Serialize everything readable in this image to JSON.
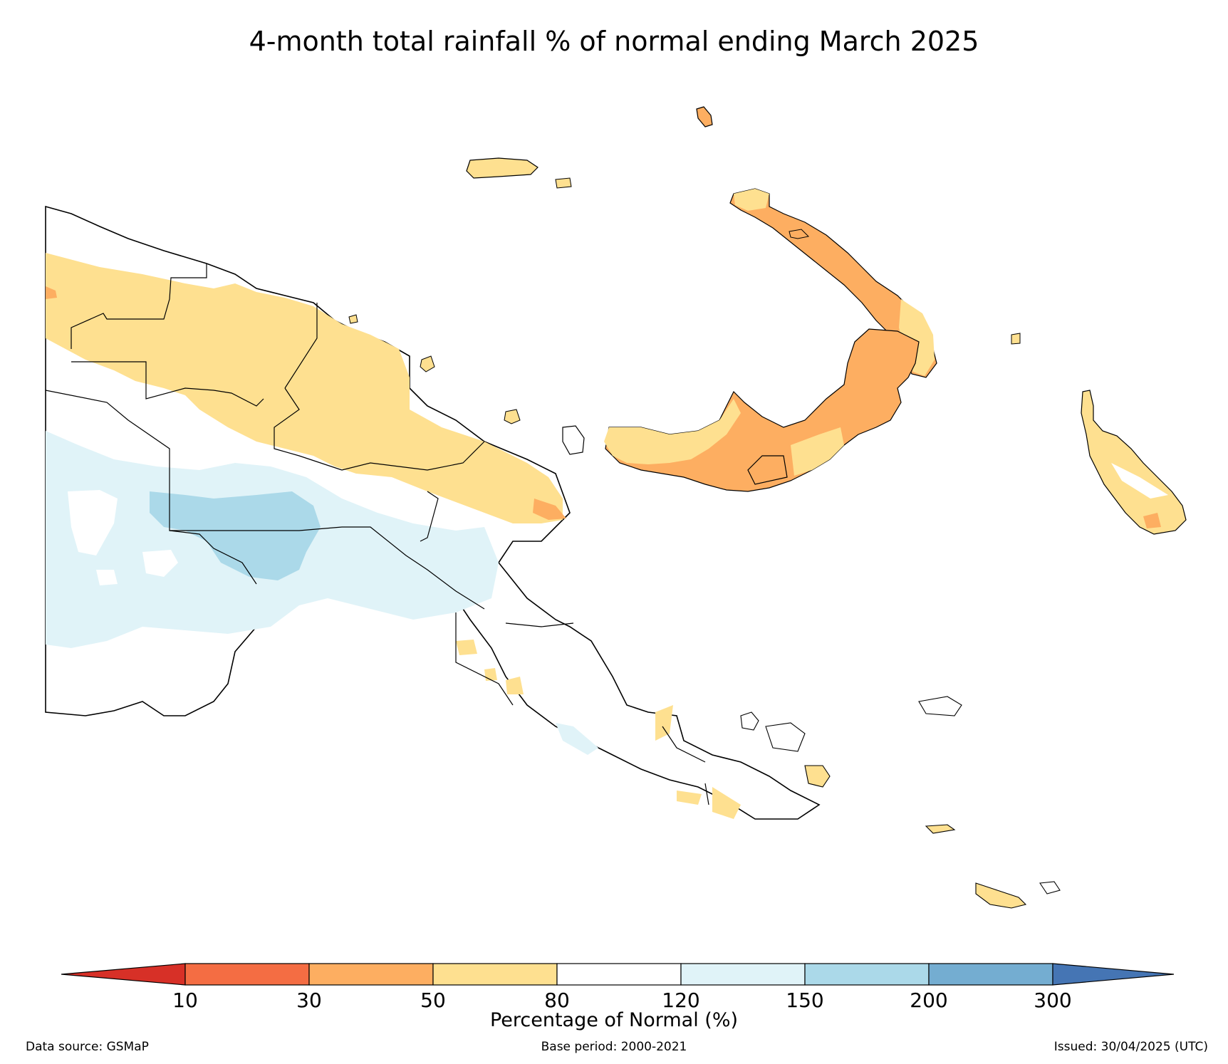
{
  "title": "4-month total rainfall % of normal ending March 2025",
  "legend": {
    "label": "Percentage of Normal (%)",
    "ticks": [
      "10",
      "30",
      "50",
      "80",
      "120",
      "150",
      "200",
      "300"
    ],
    "bins": [
      {
        "range": "<10",
        "color": "#d73027"
      },
      {
        "range": "10-30",
        "color": "#f46d43"
      },
      {
        "range": "30-50",
        "color": "#fdae61"
      },
      {
        "range": "50-80",
        "color": "#fee090"
      },
      {
        "range": "80-120",
        "color": "#ffffff"
      },
      {
        "range": "120-150",
        "color": "#e0f3f8"
      },
      {
        "range": "150-200",
        "color": "#abd9e9"
      },
      {
        "range": "200-300",
        "color": "#74add1"
      },
      {
        "range": ">300",
        "color": "#4575b4"
      }
    ]
  },
  "footer": {
    "source": "Data source: GSMaP",
    "base_period": "Base period: 2000-2021",
    "issued": "Issued: 30/04/2025 (UTC)"
  },
  "map": {
    "region": "Papua New Guinea",
    "palette": {
      "land_normal": "#ffffff",
      "below_50_80": "#fee090",
      "below_30_50": "#fdae61",
      "below_10_30": "#f46d43",
      "above_120_150": "#e0f3f8",
      "above_150_200": "#abd9e9",
      "outline": "#000000"
    }
  }
}
